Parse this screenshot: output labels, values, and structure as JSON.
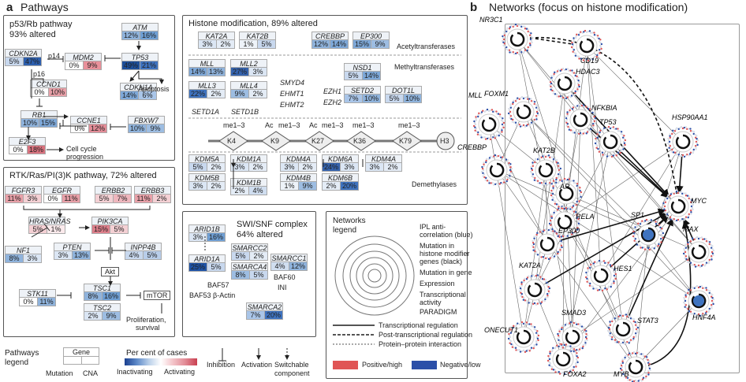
{
  "panel_a": {
    "letter": "a",
    "title": "Pathways"
  },
  "p53": {
    "title1": "p53/Rb pathway",
    "title2": "93% altered",
    "genes": [
      {
        "name": "ATM",
        "mut": "12%",
        "cna": "16%",
        "mc": "#8fb3dc",
        "cc": "#6f9fd4"
      },
      {
        "name": "CDKN2A",
        "mut": "5%",
        "cna": "47%",
        "mc": "#c8d8ee",
        "cc": "#2d5fae"
      },
      {
        "name": "MDM2",
        "mut": "0%",
        "cna": "9%",
        "mc": "#fff",
        "cc": "#e8909a"
      },
      {
        "name": "TP53",
        "mut": "49%",
        "cna": "21%",
        "mc": "#1d4f9a",
        "cc": "#3f73bf"
      },
      {
        "name": "CDKN1A",
        "mut": "14%",
        "cna": "6%",
        "mc": "#7ea8d8",
        "cc": "#a9c5e8"
      },
      {
        "name": "CCND1",
        "mut": "0%",
        "cna": "10%",
        "mc": "#fff",
        "cc": "#e8a0a8"
      },
      {
        "name": "RB1",
        "mut": "10%",
        "cna": "15%",
        "mc": "#8fb3dc",
        "cc": "#7ea8d8"
      },
      {
        "name": "CCNE1",
        "mut": "0%",
        "cna": "12%",
        "mc": "#fff",
        "cc": "#e28c97"
      },
      {
        "name": "FBXW7",
        "mut": "10%",
        "cna": "9%",
        "mc": "#8fb3dc",
        "cc": "#9dbde2"
      },
      {
        "name": "E2F3",
        "mut": "0%",
        "cna": "18%",
        "mc": "#fff",
        "cc": "#d9737f"
      }
    ],
    "labels": {
      "p14": "p14",
      "p16": "p16",
      "apoptosis": "Apoptosis",
      "cellcycle1": "Cell cycle",
      "cellcycle2": "progression"
    }
  },
  "rtk": {
    "title": "RTK/Ras/PI(3)K pathway, 72% altered",
    "genes": [
      {
        "name": "FGFR3",
        "mut": "11%",
        "cna": "3%",
        "mc": "#e8a0a8",
        "cc": "#f4d0d4"
      },
      {
        "name": "EGFR",
        "mut": "0%",
        "cna": "11%",
        "mc": "#fff",
        "cc": "#e8a0a8"
      },
      {
        "name": "ERBB2",
        "mut": "5%",
        "cna": "7%",
        "mc": "#f4d0d4",
        "cc": "#eeb6bd"
      },
      {
        "name": "ERBB3",
        "mut": "11%",
        "cna": "2%",
        "mc": "#e8a0a8",
        "cc": "#f4d0d4"
      },
      {
        "name": "HRAS/NRAS",
        "mut": "5%",
        "cna": "1%",
        "mc": "#f4d0d4",
        "cc": "#fbeaec"
      },
      {
        "name": "PIK3CA",
        "mut": "15%",
        "cna": "5%",
        "mc": "#de7f8b",
        "cc": "#f4d0d4"
      },
      {
        "name": "NF1",
        "mut": "8%",
        "cna": "3%",
        "mc": "#8fb3dc",
        "cc": "#dbe6f4"
      },
      {
        "name": "PTEN",
        "mut": "3%",
        "cna": "13%",
        "mc": "#dbe6f4",
        "cc": "#8fb3dc"
      },
      {
        "name": "INPP4B",
        "mut": "4%",
        "cna": "5%",
        "mc": "#c8d8ee",
        "cc": "#b8cde9"
      },
      {
        "name": "STK11",
        "mut": "0%",
        "cna": "11%",
        "mc": "#fff",
        "cc": "#8fb3dc"
      },
      {
        "name": "TSC1",
        "mut": "8%",
        "cna": "16%",
        "mc": "#8fb3dc",
        "cc": "#6f9fd4"
      },
      {
        "name": "TSC2",
        "mut": "2%",
        "cna": "9%",
        "mc": "#dbe6f4",
        "cc": "#9dbde2"
      }
    ],
    "labels": {
      "akt": "Akt",
      "mtor": "mTOR",
      "prolif1": "Proliferation,",
      "prolif2": "survival"
    }
  },
  "histone": {
    "title": "Histone modification, 89% altered",
    "sections": {
      "acetyl": "Acetyltransferases",
      "methyl": "Methyltransferases",
      "demethyl": "Demethylases"
    },
    "genes": [
      {
        "name": "KAT2A",
        "mut": "3%",
        "cna": "2%",
        "mc": "#dbe6f4",
        "cc": "#e4ecf6"
      },
      {
        "name": "KAT2B",
        "mut": "1%",
        "cna": "5%",
        "mc": "#eef3f9",
        "cc": "#c8d8ee"
      },
      {
        "name": "CREBBP",
        "mut": "12%",
        "cna": "14%",
        "mc": "#8fb3dc",
        "cc": "#7ea8d8"
      },
      {
        "name": "EP300",
        "mut": "15%",
        "cna": "9%",
        "mc": "#7ea8d8",
        "cc": "#9dbde2"
      },
      {
        "name": "MLL",
        "mut": "14%",
        "cna": "13%",
        "mc": "#7ea8d8",
        "cc": "#8fb3dc"
      },
      {
        "name": "MLL2",
        "mut": "27%",
        "cna": "3%",
        "mc": "#3563ad",
        "cc": "#dbe6f4"
      },
      {
        "name": "NSD1",
        "mut": "5%",
        "cna": "14%",
        "mc": "#c8d8ee",
        "cc": "#7ea8d8"
      },
      {
        "name": "MLL3",
        "mut": "22%",
        "cna": "2%",
        "mc": "#3f73bf",
        "cc": "#e4ecf6"
      },
      {
        "name": "MLL4",
        "mut": "9%",
        "cna": "2%",
        "mc": "#9dbde2",
        "cc": "#e4ecf6"
      },
      {
        "name": "SETD2",
        "mut": "7%",
        "cna": "10%",
        "mc": "#a9c5e8",
        "cc": "#8fb3dc"
      },
      {
        "name": "DOT1L",
        "mut": "5%",
        "cna": "10%",
        "mc": "#c8d8ee",
        "cc": "#8fb3dc"
      },
      {
        "name": "KDM5A",
        "mut": "5%",
        "cna": "2%",
        "mc": "#c8d8ee",
        "cc": "#e4ecf6"
      },
      {
        "name": "KDM1A",
        "mut": "3%",
        "cna": "2%",
        "mc": "#dbe6f4",
        "cc": "#e4ecf6"
      },
      {
        "name": "KDM4A",
        "mut": "3%",
        "cna": "2%",
        "mc": "#dbe6f4",
        "cc": "#e4ecf6"
      },
      {
        "name": "KDM6A",
        "mut": "24%",
        "cna": "3%",
        "mc": "#3563ad",
        "cc": "#dbe6f4"
      },
      {
        "name": "KDM4A",
        "mut": "3%",
        "cna": "2%",
        "mc": "#dbe6f4",
        "cc": "#e4ecf6"
      },
      {
        "name": "KDM5B",
        "mut": "3%",
        "cna": "2%",
        "mc": "#dbe6f4",
        "cc": "#e4ecf6"
      },
      {
        "name": "KDM4B",
        "mut": "1%",
        "cna": "9%",
        "mc": "#eef3f9",
        "cc": "#9dbde2"
      },
      {
        "name": "KDM6B",
        "mut": "2%",
        "cna": "20%",
        "mc": "#e4ecf6",
        "cc": "#3f73bf"
      },
      {
        "name": "KDM1B",
        "mut": "2%",
        "cna": "4%",
        "mc": "#e4ecf6",
        "cc": "#d0def0"
      }
    ],
    "plain_genes": [
      "SMYD4",
      "EHMT1",
      "EHMT2",
      "EZH1",
      "EZH2",
      "SETD1A",
      "SETD1B"
    ],
    "marks": {
      "me13": "me1–3",
      "ac": "Ac",
      "k4": "K4",
      "k9": "K9",
      "k27": "K27",
      "k36": "K36",
      "k79": "K79",
      "h3": "H3"
    }
  },
  "swi": {
    "title1": "SWI/SNF complex",
    "title2": "64% altered",
    "genes": [
      {
        "name": "ARID1B",
        "mut": "3%",
        "cna": "16%",
        "mc": "#dbe6f4",
        "cc": "#6f9fd4"
      },
      {
        "name": "ARID1A",
        "mut": "25%",
        "cna": "5%",
        "mc": "#1f53a6",
        "cc": "#c8d8ee"
      },
      {
        "name": "SMARCC2",
        "mut": "5%",
        "cna": "2%",
        "mc": "#c8d8ee",
        "cc": "#e4ecf6"
      },
      {
        "name": "SMARCC1",
        "mut": "4%",
        "cna": "12%",
        "mc": "#d0def0",
        "cc": "#8fb3dc"
      },
      {
        "name": "SMARCA4",
        "mut": "8%",
        "cna": "5%",
        "mc": "#9dbde2",
        "cc": "#c8d8ee"
      },
      {
        "name": "SMARCA2",
        "mut": "7%",
        "cna": "20%",
        "mc": "#a9c5e8",
        "cc": "#3f73bf"
      }
    ],
    "labels": {
      "baf57": "BAF57",
      "baf60": "BAF60",
      "ini": "INI",
      "baf53": "BAF53 β-Actin"
    }
  },
  "net_legend": {
    "title1": "Networks",
    "title2": "legend",
    "rings": [
      "IPL anti-",
      "correlation (blue)",
      "Mutation in",
      "histone modifier",
      "genes (black)",
      "Mutation in gene",
      "Expression",
      "Transcriptional",
      "activity",
      "PARADIGM"
    ],
    "lines": [
      "Transcriptional regulation",
      "Post-transcriptional regulation",
      "Protein–protein interaction"
    ],
    "pos": "Positive/high",
    "neg": "Negative/low",
    "pos_color": "#e05555",
    "neg_color": "#2b4fa8"
  },
  "path_legend": {
    "title1": "Pathways",
    "title2": "legend",
    "gene": "Gene",
    "mutation": "Mutation",
    "cna": "CNA",
    "pct_title": "Per cent of cases",
    "inactivating": "Inactivating",
    "activating": "Activating",
    "inhibition": "Inhibition",
    "activation": "Activation",
    "switchable1": "Switchable",
    "switchable2": "component"
  },
  "panel_b": {
    "letter": "b",
    "title": "Networks (focus on histone modification)",
    "nodes": [
      "NR3C1",
      "CD19",
      "HDAC3",
      "FOXM1",
      "MLL",
      "NFKBIA",
      "HSP90AA1",
      "TP53",
      "CREBBP",
      "KAT2B",
      "AR",
      "RELA",
      "MYC",
      "SP1",
      "EP300",
      "MAX",
      "HES1",
      "KAT2A",
      "HNF4A",
      "ONECUT1",
      "SMAD3",
      "STAT3",
      "FOXA2",
      "MYB"
    ]
  }
}
